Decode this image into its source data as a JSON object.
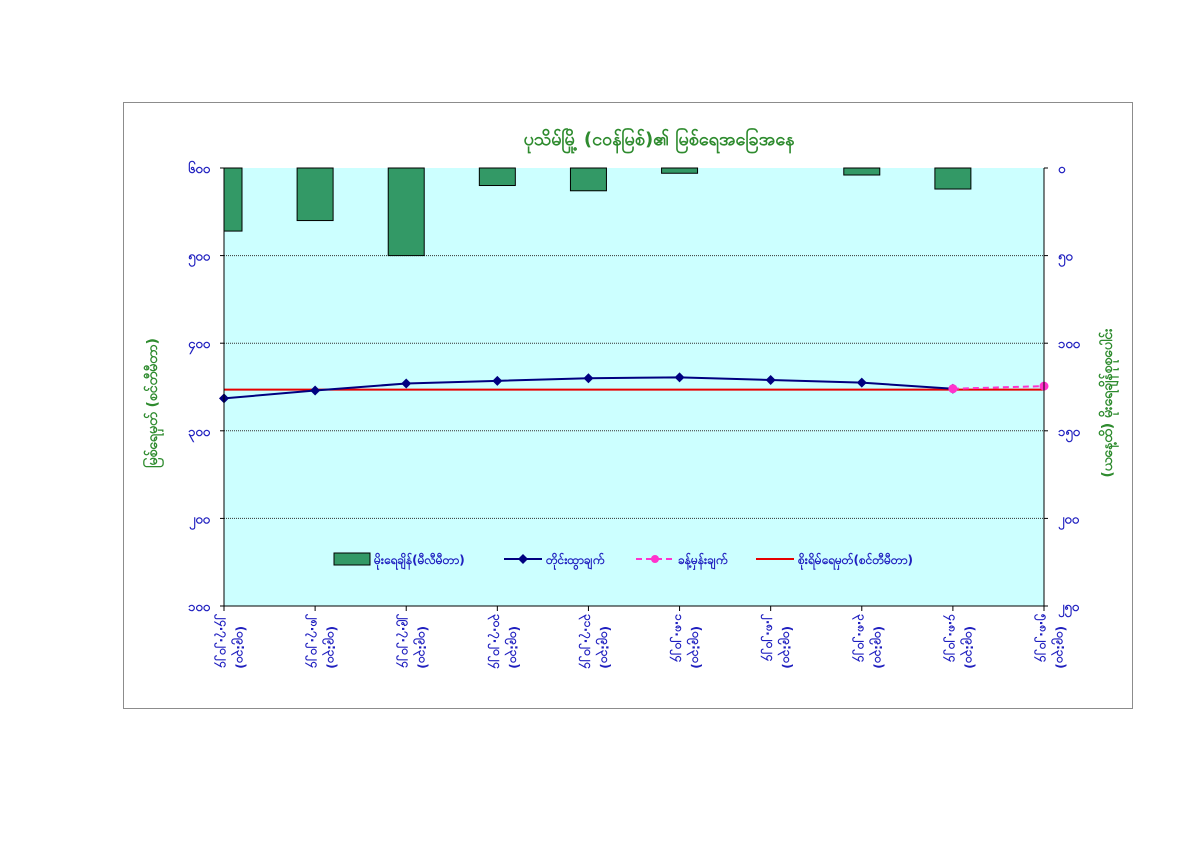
{
  "chart_data": {
    "type": "bar+line",
    "title": "ပုသိမ်မြို့ (ငဝန်မြစ်)၏ မြစ်ရေအခြေအနေ",
    "ylabel_left": "မြစ်ရေမှတ် (စင်တီမီတာ)",
    "ylabel_right": "(ယနေ့ထိ) မိုးရေချိန်စုစုပေါင်း",
    "left_axis": {
      "ylim": [
        100,
        600
      ],
      "ticks": [
        "၁၀၀",
        "၂၀၀",
        "၃၀၀",
        "၄၀၀",
        "၅၀၀",
        "၆၀၀"
      ]
    },
    "right_axis": {
      "ylim": [
        0,
        250
      ],
      "inverted": true,
      "ticks": [
        "၀",
        "၅၀",
        "၁၀၀",
        "၁၅၀",
        "၂၀၀",
        "၂၅၀"
      ]
    },
    "categories": [
      [
        "၂၄.၇.၂၀၂၄",
        "(၀၉:၃၀)"
      ],
      [
        "၂၈.၇.၂၀၂၄",
        "(၀၉:၃၀)"
      ],
      [
        "၂၉.၇.၂၀၂၄",
        "(၀၉:၃၀)"
      ],
      [
        "၃၀.၇.၂၀၂၄",
        "(၀၉:၃၀)"
      ],
      [
        "၃၁.၇.၂၀၂၄",
        "(၀၉:၃၀)"
      ],
      [
        "၁.၈.၂၀၂၄",
        "(၀၉:၃၀)"
      ],
      [
        "၂.၈.၂၀၂၄",
        "(၀၉:၃၀)"
      ],
      [
        "၃.၈.၂၀၂၄",
        "(၀၉:၃၀)"
      ],
      [
        "၄.၈.၂၀၂၄",
        "(၀၉:၃၀)"
      ],
      [
        "၅.၈.၂၀၂၄",
        "(၀၉:၃၀)"
      ]
    ],
    "series": [
      {
        "name": "မိုးရေချိန်(မီလီမီတာ)",
        "type": "bar",
        "axis": "right",
        "color": "#339966",
        "values": [
          36,
          30,
          50,
          10,
          13,
          3,
          null,
          4,
          12,
          null
        ]
      },
      {
        "name": "တိုင်းထွာချက်",
        "type": "line",
        "axis": "left",
        "color": "#000080",
        "values": [
          337,
          346,
          354,
          357,
          360,
          361,
          358,
          355,
          348,
          null
        ]
      },
      {
        "name": "ခန့်မှန်းချက်",
        "type": "line-dashed",
        "axis": "left",
        "color": "#ff33cc",
        "values": [
          null,
          null,
          null,
          null,
          null,
          null,
          null,
          null,
          348,
          351
        ]
      },
      {
        "name": "စိုးရိမ်ရေမှတ်(စင်တီမီတာ)",
        "type": "hline",
        "axis": "left",
        "color": "#e60000",
        "value": 347
      }
    ],
    "grid": true,
    "legend_position": "bottom-center",
    "colors": {
      "plot_background": "#ccffff",
      "axis_text": "#1f1fbf",
      "title_text": "#2e8b2e"
    }
  }
}
